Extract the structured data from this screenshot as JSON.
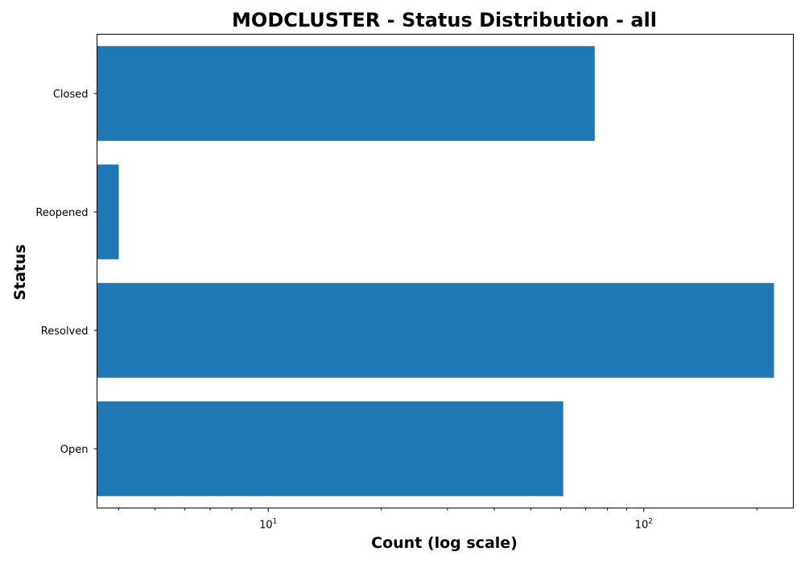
{
  "chart_data": {
    "type": "bar",
    "orientation": "horizontal",
    "title": "MODCLUSTER - Status Distribution - all",
    "xlabel": "Count (log scale)",
    "ylabel": "Status",
    "x_scale": "log",
    "xlim": [
      3.5,
      250
    ],
    "categories": [
      "Open",
      "Resolved",
      "Reopened",
      "Closed"
    ],
    "values": [
      61,
      222,
      4,
      74
    ],
    "x_major_ticks": [
      {
        "base": "10",
        "exp": "1",
        "value": 10
      },
      {
        "base": "10",
        "exp": "2",
        "value": 100
      }
    ],
    "x_minor_ticks": [
      4,
      5,
      6,
      7,
      8,
      9,
      20,
      30,
      40,
      50,
      60,
      70,
      80,
      90,
      200
    ],
    "grid": false,
    "legend": "none",
    "bar_color": "#1f77b4"
  }
}
